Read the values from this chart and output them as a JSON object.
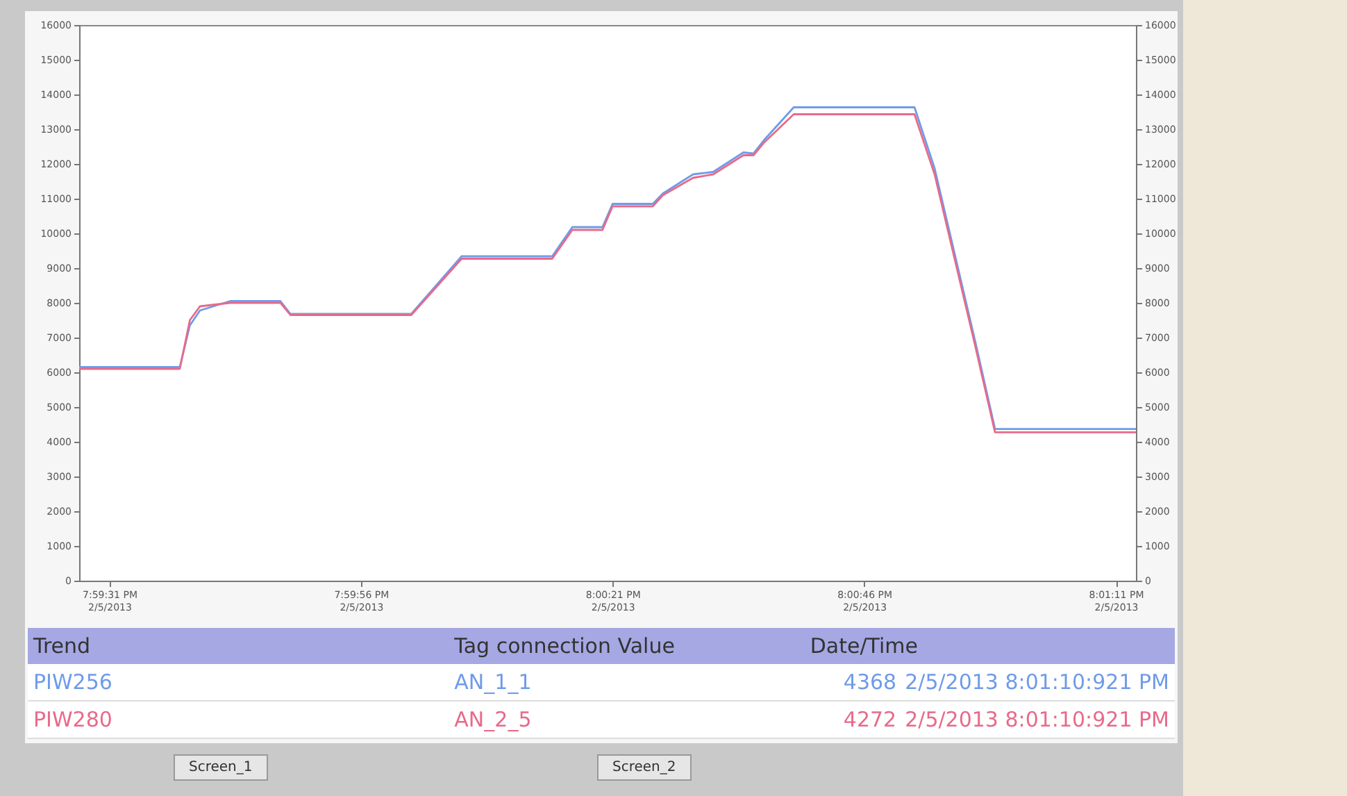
{
  "chart_data": {
    "type": "line",
    "x": [
      "2013-02-05T19:59:28",
      "2013-02-05T19:59:38",
      "2013-02-05T19:59:39",
      "2013-02-05T19:59:40",
      "2013-02-05T19:59:43",
      "2013-02-05T19:59:48",
      "2013-02-05T19:59:49",
      "2013-02-05T20:00:01",
      "2013-02-05T20:00:06",
      "2013-02-05T20:00:15",
      "2013-02-05T20:00:17",
      "2013-02-05T20:00:20",
      "2013-02-05T20:00:21",
      "2013-02-05T20:00:25",
      "2013-02-05T20:00:26",
      "2013-02-05T20:00:29",
      "2013-02-05T20:00:31",
      "2013-02-05T20:00:34",
      "2013-02-05T20:00:35",
      "2013-02-05T20:00:36",
      "2013-02-05T20:00:39",
      "2013-02-05T20:00:51",
      "2013-02-05T20:00:53",
      "2013-02-05T20:00:57",
      "2013-02-05T20:00:59",
      "2013-02-05T20:01:13"
    ],
    "series": [
      {
        "name": "PIW256",
        "color": "#6f9be8",
        "values": [
          6150,
          6150,
          7350,
          7780,
          8050,
          8050,
          7680,
          7680,
          9340,
          9340,
          10180,
          10180,
          10850,
          10850,
          11150,
          11700,
          11770,
          12330,
          12300,
          12670,
          13630,
          13630,
          11870,
          6930,
          4368,
          4368
        ]
      },
      {
        "name": "PIW280",
        "color": "#e86a8a",
        "values": [
          6100,
          6100,
          7500,
          7900,
          8000,
          8000,
          7650,
          7650,
          9270,
          9270,
          10100,
          10100,
          10780,
          10780,
          11100,
          11600,
          11700,
          12250,
          12250,
          12600,
          13430,
          13430,
          11700,
          6800,
          4272,
          4272
        ]
      }
    ],
    "xlim": [
      "2013-02-05T19:59:28",
      "2013-02-05T20:01:13"
    ],
    "xticks": [
      {
        "value": "2013-02-05T19:59:31",
        "label": "7:59:31 PM\n2/5/2013"
      },
      {
        "value": "2013-02-05T19:59:56",
        "label": "7:59:56 PM\n2/5/2013"
      },
      {
        "value": "2013-02-05T20:00:21",
        "label": "8:00:21 PM\n2/5/2013"
      },
      {
        "value": "2013-02-05T20:00:46",
        "label": "8:00:46 PM\n2/5/2013"
      },
      {
        "value": "2013-02-05T20:01:11",
        "label": "8:01:11 PM\n2/5/2013"
      }
    ],
    "ylim": [
      0,
      16000
    ],
    "yticks": [
      0,
      1000,
      2000,
      3000,
      4000,
      5000,
      6000,
      7000,
      8000,
      9000,
      10000,
      11000,
      12000,
      13000,
      14000,
      15000,
      16000
    ],
    "y2lim": [
      0,
      16000
    ],
    "y2ticks": [
      0,
      1000,
      2000,
      3000,
      4000,
      5000,
      6000,
      7000,
      8000,
      9000,
      10000,
      11000,
      12000,
      13000,
      14000,
      15000,
      16000
    ],
    "grid": false,
    "annotations": [
      "Trend",
      "Tag connection Value",
      "Date/Time",
      "AN_1_1",
      "4368",
      "2/5/2013 8:01:10:921 PM",
      "AN_2_5",
      "4272",
      "2/5/2013 8:01:10:921 PM",
      "Screen_1",
      "Screen_2"
    ]
  }
}
